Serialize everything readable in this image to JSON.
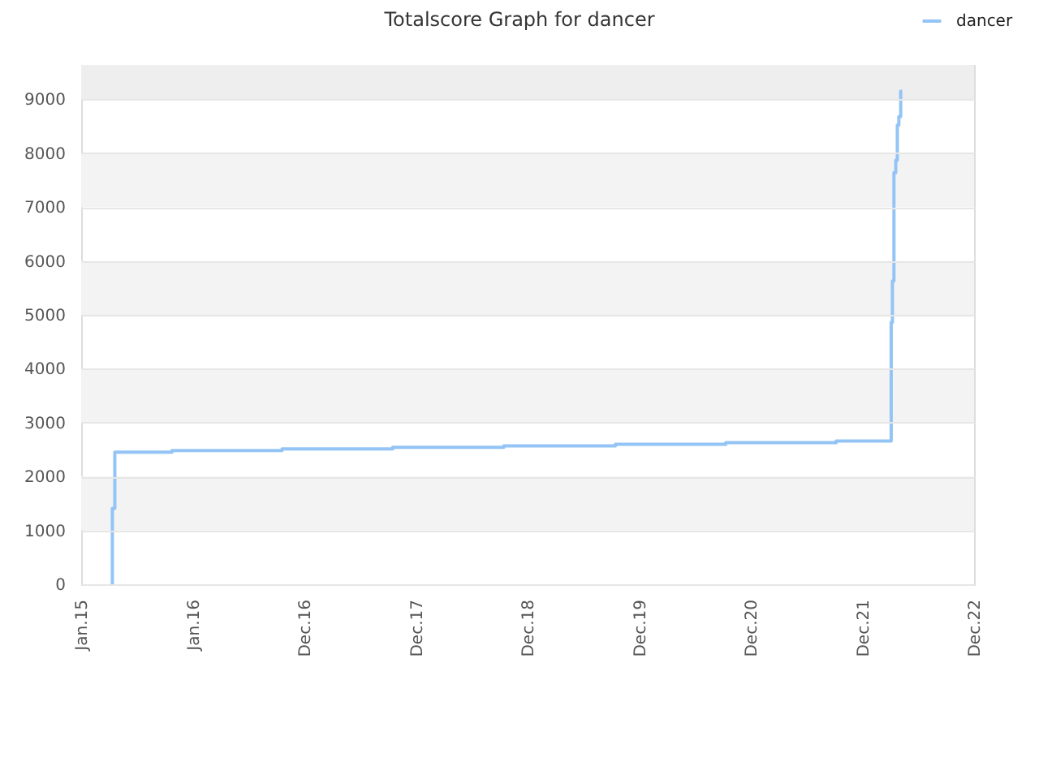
{
  "chart_data": {
    "type": "step",
    "title": "Totalscore Graph for dancer",
    "x": [
      "2015-04-12",
      "2015-04-13",
      "2015-04-21",
      "2015-10-25",
      "2016-10-19",
      "2017-10-16",
      "2018-10-14",
      "2019-10-14",
      "2020-10-09",
      "2021-10-05",
      "2022-04-03",
      "2022-04-07",
      "2022-04-12",
      "2022-04-18",
      "2022-04-23",
      "2022-04-28",
      "2022-05-04",
      "2022-05-09"
    ],
    "series": [
      {
        "name": "dancer",
        "color": "#94c4f5",
        "values": [
          0,
          1410,
          2450,
          2480,
          2510,
          2540,
          2570,
          2600,
          2630,
          2660,
          4860,
          5630,
          7640,
          7870,
          8520,
          8680,
          9150,
          9150
        ]
      }
    ],
    "xlim": [
      "2015-01-01",
      "2022-12-30"
    ],
    "xticks": [
      {
        "value": "2015-01-01",
        "label": "Jan.15"
      },
      {
        "value": "2016-01-01",
        "label": "Jan.16"
      },
      {
        "value": "2016-12-31",
        "label": "Dec.16"
      },
      {
        "value": "2017-12-31",
        "label": "Dec.17"
      },
      {
        "value": "2018-12-31",
        "label": "Dec.18"
      },
      {
        "value": "2019-12-31",
        "label": "Dec.19"
      },
      {
        "value": "2020-12-30",
        "label": "Dec.20"
      },
      {
        "value": "2021-12-30",
        "label": "Dec.21"
      },
      {
        "value": "2022-12-30",
        "label": "Dec.22"
      }
    ],
    "ylim": [
      0,
      9640
    ],
    "yticks": [
      0,
      1000,
      2000,
      3000,
      4000,
      5000,
      6000,
      7000,
      8000,
      9000
    ],
    "bands": [
      {
        "axis": "y",
        "from": 1000,
        "to": 2000,
        "color": "#f3f3f3"
      },
      {
        "axis": "y",
        "from": 3000,
        "to": 4000,
        "color": "#f3f3f3"
      },
      {
        "axis": "y",
        "from": 5000,
        "to": 6000,
        "color": "#f3f3f3"
      },
      {
        "axis": "y",
        "from": 7000,
        "to": 8000,
        "color": "#f3f3f3"
      },
      {
        "axis": "y",
        "from": 9000,
        "to": 9640,
        "color": "#eeeeee"
      }
    ],
    "grid": "y",
    "legend": "top right"
  }
}
